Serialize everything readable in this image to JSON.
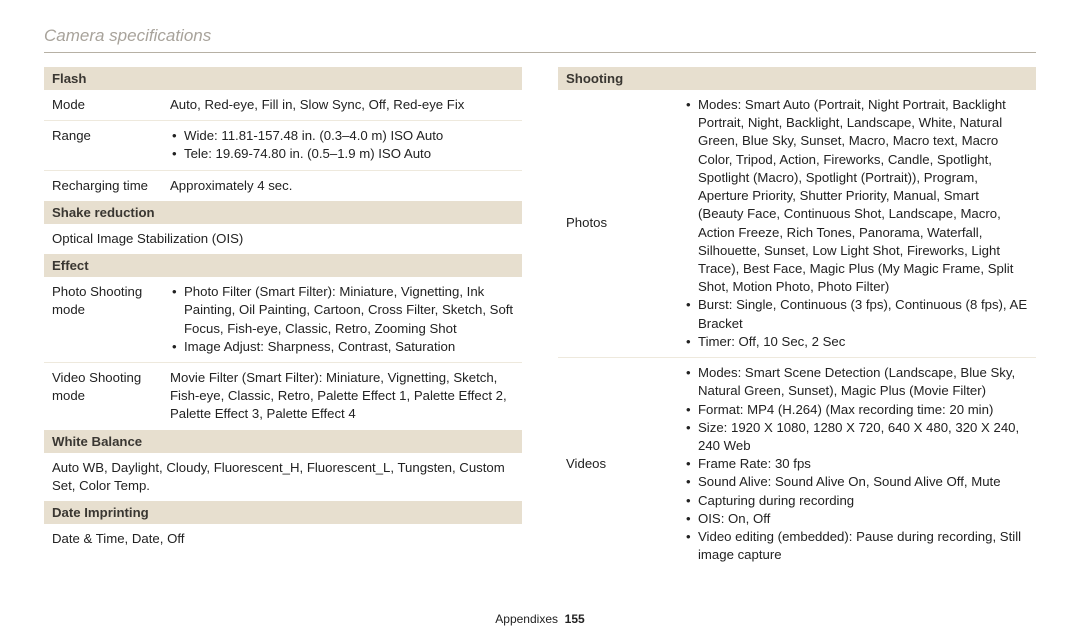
{
  "title": "Camera specifications",
  "footer": {
    "label": "Appendixes",
    "page": "155"
  },
  "left": {
    "flash": {
      "header": "Flash",
      "mode_k": "Mode",
      "mode_v": "Auto, Red-eye, Fill in, Slow Sync, Off, Red-eye Fix",
      "range_k": "Range",
      "range_b1": "Wide: 11.81-157.48 in. (0.3–4.0 m) ISO Auto",
      "range_b2": "Tele: 19.69-74.80 in. (0.5–1.9 m) ISO Auto",
      "recharge_k": "Recharging time",
      "recharge_v": "Approximately 4 sec."
    },
    "shake": {
      "header": "Shake reduction",
      "value": "Optical Image Stabilization (OIS)"
    },
    "effect": {
      "header": "Effect",
      "photo_k": "Photo Shooting mode",
      "photo_b1": "Photo Filter (Smart Filter): Miniature, Vignetting, Ink Painting, Oil Painting, Cartoon, Cross Filter, Sketch, Soft Focus, Fish-eye, Classic, Retro, Zooming Shot",
      "photo_b2": "Image Adjust: Sharpness, Contrast, Saturation",
      "video_k": "Video Shooting mode",
      "video_v": "Movie Filter (Smart Filter): Miniature, Vignetting, Sketch, Fish-eye, Classic, Retro, Palette Effect 1, Palette Effect 2, Palette Effect 3, Palette Effect 4"
    },
    "wb": {
      "header": "White Balance",
      "value": "Auto WB, Daylight, Cloudy, Fluorescent_H, Fluorescent_L, Tungsten, Custom Set, Color Temp."
    },
    "date": {
      "header": "Date Imprinting",
      "value": "Date & Time, Date, Off"
    }
  },
  "right": {
    "shooting": {
      "header": "Shooting",
      "photos_k": "Photos",
      "photos_b1": "Modes: Smart Auto (Portrait, Night Portrait, Backlight Portrait, Night, Backlight, Landscape, White, Natural Green, Blue Sky, Sunset, Macro, Macro text, Macro Color, Tripod, Action, Fireworks, Candle, Spotlight, Spotlight (Macro), Spotlight (Portrait)), Program, Aperture Priority, Shutter Priority, Manual, Smart (Beauty Face, Continuous Shot, Landscape, Macro, Action Freeze, Rich Tones, Panorama, Waterfall, Silhouette, Sunset, Low Light Shot, Fireworks, Light Trace), Best Face, Magic Plus (My Magic Frame, Split Shot, Motion Photo, Photo Filter)",
      "photos_b2": "Burst: Single, Continuous (3 fps), Continuous (8 fps), AE Bracket",
      "photos_b3": "Timer: Off, 10 Sec, 2 Sec",
      "videos_k": "Videos",
      "videos_b1": "Modes: Smart Scene Detection (Landscape, Blue Sky, Natural Green, Sunset), Magic Plus (Movie Filter)",
      "videos_b2": "Format: MP4 (H.264) (Max recording time: 20 min)",
      "videos_b3": "Size: 1920 X 1080, 1280 X 720, 640 X 480, 320 X 240, 240 Web",
      "videos_b4": "Frame Rate: 30 fps",
      "videos_b5": "Sound Alive: Sound Alive On, Sound Alive Off, Mute",
      "videos_b6": "Capturing during recording",
      "videos_b7": "OIS: On, Off",
      "videos_b8": "Video editing (embedded): Pause during recording, Still image capture"
    }
  }
}
